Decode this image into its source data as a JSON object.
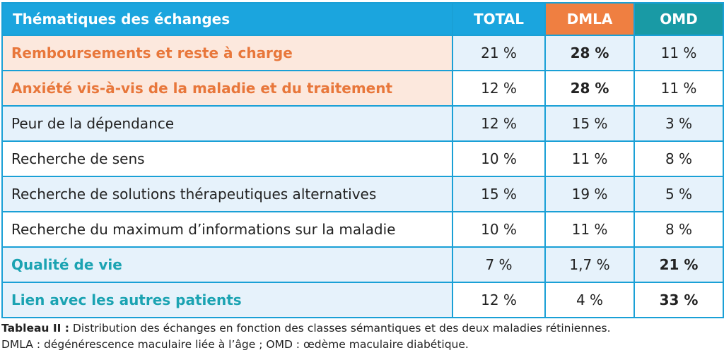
{
  "table": {
    "headers": [
      "Thématiques des échanges",
      "TOTAL",
      "DMLA",
      "OMD"
    ],
    "rows": [
      {
        "label": "Remboursements et reste à charge",
        "total": "21 %",
        "dmla": "28 %",
        "omd": "11 %"
      },
      {
        "label": "Anxiété vis-à-vis de la maladie et du traitement",
        "total": "12 %",
        "dmla": "28 %",
        "omd": "11 %"
      },
      {
        "label": "Peur de la dépendance",
        "total": "12 %",
        "dmla": "15 %",
        "omd": "3 %"
      },
      {
        "label": "Recherche de sens",
        "total": "10 %",
        "dmla": "11 %",
        "omd": "8 %"
      },
      {
        "label": "Recherche de solutions thérapeutiques alternatives",
        "total": "15 %",
        "dmla": "19 %",
        "omd": "5 %"
      },
      {
        "label": "Recherche du maximum d’informations sur la maladie",
        "total": "10 %",
        "dmla": "11 %",
        "omd": "8 %"
      },
      {
        "label": "Qualité de vie",
        "total": "7 %",
        "dmla": "1,7 %",
        "omd": "21 %"
      },
      {
        "label": "Lien avec les autres patients",
        "total": "12 %",
        "dmla": "4 %",
        "omd": "33 %"
      }
    ]
  },
  "caption": {
    "label": "Tableau II :",
    "line1": " Distribution des échanges en fonction des classes sémantiques et des deux maladies rétiniennes.",
    "line2": "DMLA : dégénérescence maculaire liée à l’âge ; OMD : œdème maculaire diabétique."
  },
  "colors": {
    "header_blue": "#1ba5de",
    "header_orange": "#ef7f41",
    "header_teal": "#199aa5",
    "highlight_orange": "#e8773b",
    "highlight_teal": "#1ba3b2",
    "row_shade": "#e6f2fb",
    "row_orange_shade": "#fce8dd"
  }
}
